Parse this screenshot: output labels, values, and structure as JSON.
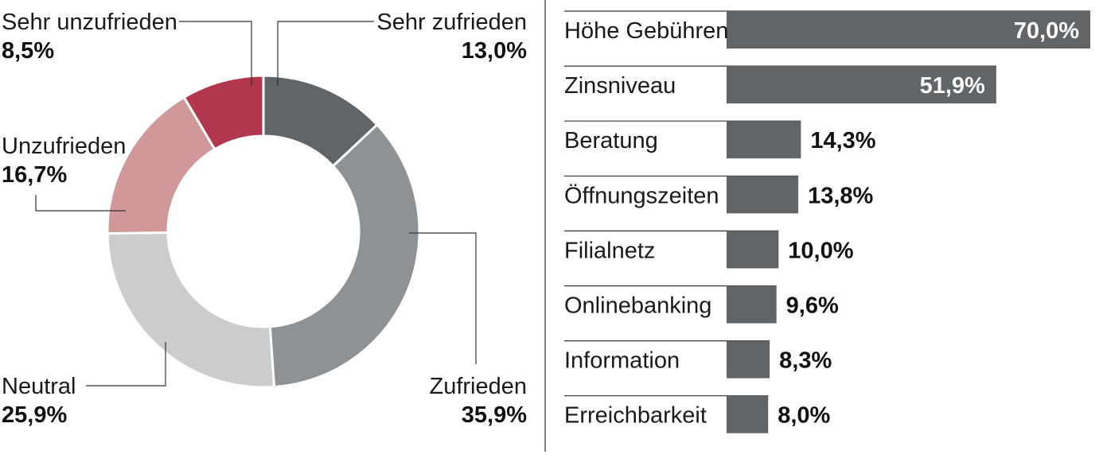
{
  "chart_data": [
    {
      "type": "pie",
      "variant": "donut",
      "categories": [
        "Sehr zufrieden",
        "Zufrieden",
        "Neutral",
        "Unzufrieden",
        "Sehr unzufrieden"
      ],
      "values": [
        13.0,
        35.9,
        25.9,
        16.7,
        8.5
      ],
      "value_labels": [
        "13,0%",
        "35,9%",
        "25,9%",
        "16,7%",
        "8,5%"
      ],
      "colors": [
        "#616568",
        "#8f9294",
        "#cbcccd",
        "#d09899",
        "#b3364f"
      ],
      "title": ""
    },
    {
      "type": "bar",
      "orientation": "horizontal",
      "categories": [
        "Höhe Gebühren",
        "Zinsniveau",
        "Beratung",
        "Öffnungszeiten",
        "Filialnetz",
        "Onlinebanking",
        "Information",
        "Erreichbarkeit"
      ],
      "values": [
        70.0,
        51.9,
        14.3,
        13.8,
        10.0,
        9.6,
        8.3,
        8.0
      ],
      "value_labels": [
        "70,0%",
        "51,9%",
        "14,3%",
        "13,8%",
        "10,0%",
        "9,6%",
        "8,3%",
        "8,0%"
      ],
      "xlim": [
        0,
        70
      ],
      "bar_color": "#616568",
      "inside_label_color": "#ffffff",
      "outside_label_color": "#111111",
      "title": ""
    }
  ]
}
